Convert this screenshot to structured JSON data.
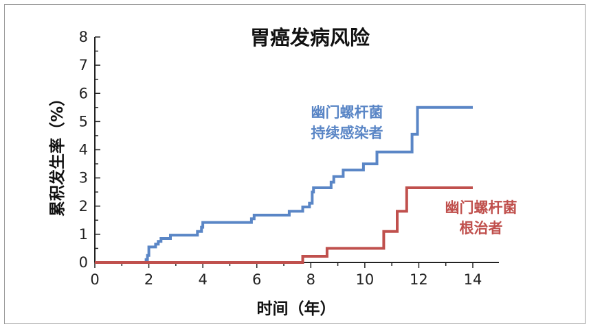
{
  "chart_data": {
    "type": "line",
    "step": true,
    "title": "胃癌发病风险",
    "xlabel": "时间（年）",
    "ylabel": "累积发生率（%）",
    "xlim": [
      0,
      14
    ],
    "ylim": [
      0,
      8
    ],
    "xticks": [
      0,
      2,
      4,
      6,
      8,
      10,
      12,
      14
    ],
    "yticks": [
      0,
      1,
      2,
      3,
      4,
      5,
      6,
      7,
      8
    ],
    "grid": false,
    "legend": "none",
    "series": [
      {
        "name": "幽门螺杆菌持续感染者",
        "label_lines": [
          "幽门螺杆菌",
          "持续感染者"
        ],
        "color": "#5a86c6",
        "points": [
          [
            0,
            0
          ],
          [
            1.9,
            0
          ],
          [
            1.9,
            0.1
          ],
          [
            1.95,
            0.1
          ],
          [
            1.95,
            0.25
          ],
          [
            2.0,
            0.25
          ],
          [
            2.0,
            0.55
          ],
          [
            2.25,
            0.55
          ],
          [
            2.25,
            0.65
          ],
          [
            2.35,
            0.65
          ],
          [
            2.35,
            0.75
          ],
          [
            2.45,
            0.75
          ],
          [
            2.45,
            0.85
          ],
          [
            2.8,
            0.85
          ],
          [
            2.8,
            0.97
          ],
          [
            3.8,
            0.97
          ],
          [
            3.8,
            1.1
          ],
          [
            3.95,
            1.1
          ],
          [
            3.95,
            1.25
          ],
          [
            4.0,
            1.25
          ],
          [
            4.0,
            1.42
          ],
          [
            5.8,
            1.42
          ],
          [
            5.8,
            1.55
          ],
          [
            5.9,
            1.55
          ],
          [
            5.9,
            1.68
          ],
          [
            7.2,
            1.68
          ],
          [
            7.2,
            1.82
          ],
          [
            7.7,
            1.82
          ],
          [
            7.7,
            1.97
          ],
          [
            7.95,
            1.97
          ],
          [
            7.95,
            2.1
          ],
          [
            8.05,
            2.1
          ],
          [
            8.05,
            2.5
          ],
          [
            8.1,
            2.5
          ],
          [
            8.1,
            2.65
          ],
          [
            8.75,
            2.65
          ],
          [
            8.75,
            2.85
          ],
          [
            8.85,
            2.85
          ],
          [
            8.85,
            3.05
          ],
          [
            9.2,
            3.05
          ],
          [
            9.2,
            3.28
          ],
          [
            9.95,
            3.28
          ],
          [
            9.95,
            3.5
          ],
          [
            10.45,
            3.5
          ],
          [
            10.45,
            3.92
          ],
          [
            11.75,
            3.92
          ],
          [
            11.75,
            4.55
          ],
          [
            11.95,
            4.55
          ],
          [
            11.95,
            5.5
          ],
          [
            14.0,
            5.5
          ]
        ]
      },
      {
        "name": "幽门螺杆菌根治者",
        "label_lines": [
          "幽门螺杆菌",
          "根治者"
        ],
        "color": "#c0504d",
        "points": [
          [
            0,
            0
          ],
          [
            7.7,
            0
          ],
          [
            7.7,
            0.22
          ],
          [
            8.6,
            0.22
          ],
          [
            8.6,
            0.5
          ],
          [
            10.7,
            0.5
          ],
          [
            10.7,
            1.1
          ],
          [
            11.2,
            1.1
          ],
          [
            11.2,
            1.82
          ],
          [
            11.55,
            1.82
          ],
          [
            11.55,
            2.65
          ],
          [
            14.0,
            2.65
          ]
        ]
      }
    ]
  }
}
